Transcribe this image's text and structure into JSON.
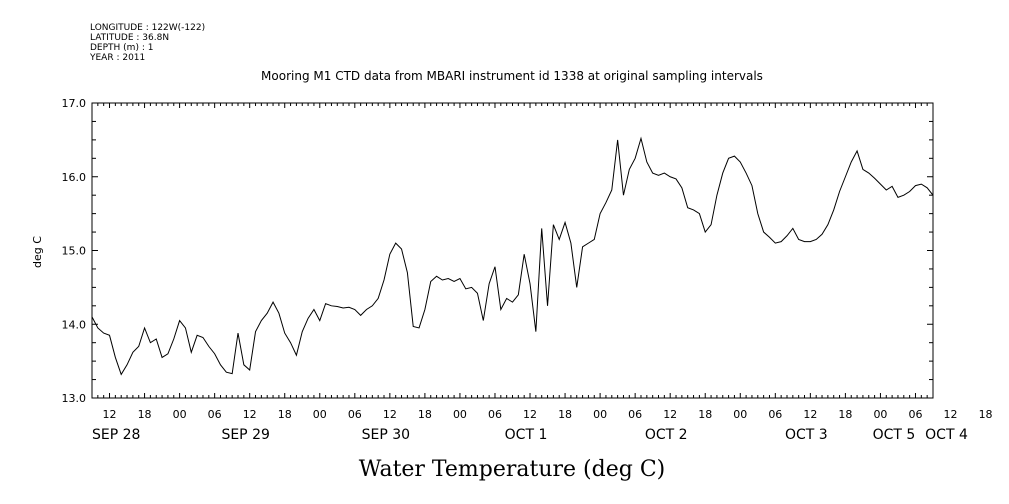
{
  "meta": {
    "longitude": "LONGITUDE : 122W(-122)",
    "latitude": "LATITUDE : 36.8N",
    "depth": "DEPTH (m) : 1",
    "year": "YEAR : 2011"
  },
  "chart_data": {
    "type": "line",
    "title": "Mooring M1 CTD data from MBARI instrument id 1338 at original sampling intervals",
    "xlabel": "Water Temperature (deg C)",
    "ylabel": "deg C",
    "ylim": [
      13.0,
      17.0
    ],
    "yticks": [
      "13.0",
      "14.0",
      "15.0",
      "16.0",
      "17.0"
    ],
    "xlim_hours": [
      9,
      153
    ],
    "hour_ticks": [
      "12",
      "18",
      "00",
      "06",
      "12",
      "18",
      "00",
      "06",
      "12",
      "18",
      "00",
      "06",
      "12",
      "18",
      "00",
      "06",
      "12",
      "18",
      "00",
      "06",
      "12",
      "18",
      "00",
      "06",
      "12",
      "18",
      "00",
      "06"
    ],
    "date_labels": [
      "SEP 28",
      "SEP 29",
      "SEP 30",
      "OCT  1",
      "OCT  2",
      "OCT  3",
      "OCT  4",
      "OCT  5"
    ],
    "grid": false,
    "series": [
      {
        "x": [
          9,
          10,
          11,
          12,
          13,
          14,
          15,
          16,
          17,
          18,
          19,
          20,
          21,
          22,
          23,
          24,
          25,
          26,
          27,
          28,
          29,
          30,
          31,
          32,
          33,
          34,
          35,
          36,
          37,
          38,
          39,
          40,
          41,
          42,
          43,
          44,
          45,
          46,
          47,
          48,
          49,
          50,
          51,
          52,
          53,
          54,
          55,
          56,
          57,
          58,
          59,
          60,
          61,
          62,
          63,
          64,
          65,
          66,
          67,
          68,
          69,
          70,
          71,
          72,
          73,
          74,
          75,
          76,
          77,
          78,
          79,
          80,
          81,
          82,
          83,
          84,
          85,
          86,
          87,
          88,
          89,
          90,
          91,
          92,
          93,
          94,
          95,
          96,
          97,
          98,
          99,
          100,
          101,
          102,
          103,
          104,
          105,
          106,
          107,
          108,
          109,
          110,
          111,
          112,
          113,
          114,
          115,
          116,
          117,
          118,
          119,
          120,
          121,
          122,
          123,
          124,
          125,
          126,
          127,
          128,
          129,
          130,
          131,
          132,
          133,
          134,
          135,
          136,
          137,
          138,
          139,
          140,
          141,
          142,
          143,
          144,
          145,
          146,
          147,
          148,
          149,
          150,
          151,
          152,
          153
        ],
        "y": [
          14.1,
          13.95,
          13.88,
          13.85,
          13.55,
          13.32,
          13.45,
          13.62,
          13.7,
          13.95,
          13.75,
          13.8,
          13.55,
          13.6,
          13.8,
          14.05,
          13.95,
          13.62,
          13.85,
          13.82,
          13.7,
          13.6,
          13.45,
          13.35,
          13.33,
          13.88,
          13.45,
          13.38,
          13.9,
          14.05,
          14.15,
          14.3,
          14.15,
          13.88,
          13.75,
          13.58,
          13.9,
          14.08,
          14.2,
          14.05,
          14.28,
          14.25,
          14.24,
          14.22,
          14.23,
          14.2,
          14.12,
          14.2,
          14.25,
          14.35,
          14.6,
          14.95,
          15.1,
          15.02,
          14.7,
          13.97,
          13.95,
          14.2,
          14.58,
          14.65,
          14.6,
          14.62,
          14.58,
          14.62,
          14.48,
          14.5,
          14.42,
          14.05,
          14.55,
          14.78,
          14.2,
          14.35,
          14.3,
          14.4,
          14.95,
          14.55,
          13.9,
          15.3,
          14.25,
          15.35,
          15.15,
          15.38,
          15.1,
          14.5,
          15.05,
          15.1,
          15.15,
          15.5,
          15.65,
          15.82,
          16.5,
          15.75,
          16.1,
          16.25,
          16.52,
          16.2,
          16.05,
          16.02,
          16.05,
          16.0,
          15.97,
          15.85,
          15.58,
          15.55,
          15.5,
          15.25,
          15.35,
          15.75,
          16.05,
          16.25,
          16.28,
          16.2,
          16.05,
          15.88,
          15.5,
          15.25,
          15.18,
          15.1,
          15.12,
          15.2,
          15.3,
          15.15,
          15.12,
          15.12,
          15.15,
          15.22,
          15.35,
          15.55,
          15.8,
          16.0,
          16.2,
          16.35,
          16.1,
          16.05,
          15.98,
          15.9,
          15.82,
          15.87,
          15.72,
          15.75,
          15.8,
          15.88,
          15.9,
          15.85,
          15.75
        ]
      }
    ]
  }
}
